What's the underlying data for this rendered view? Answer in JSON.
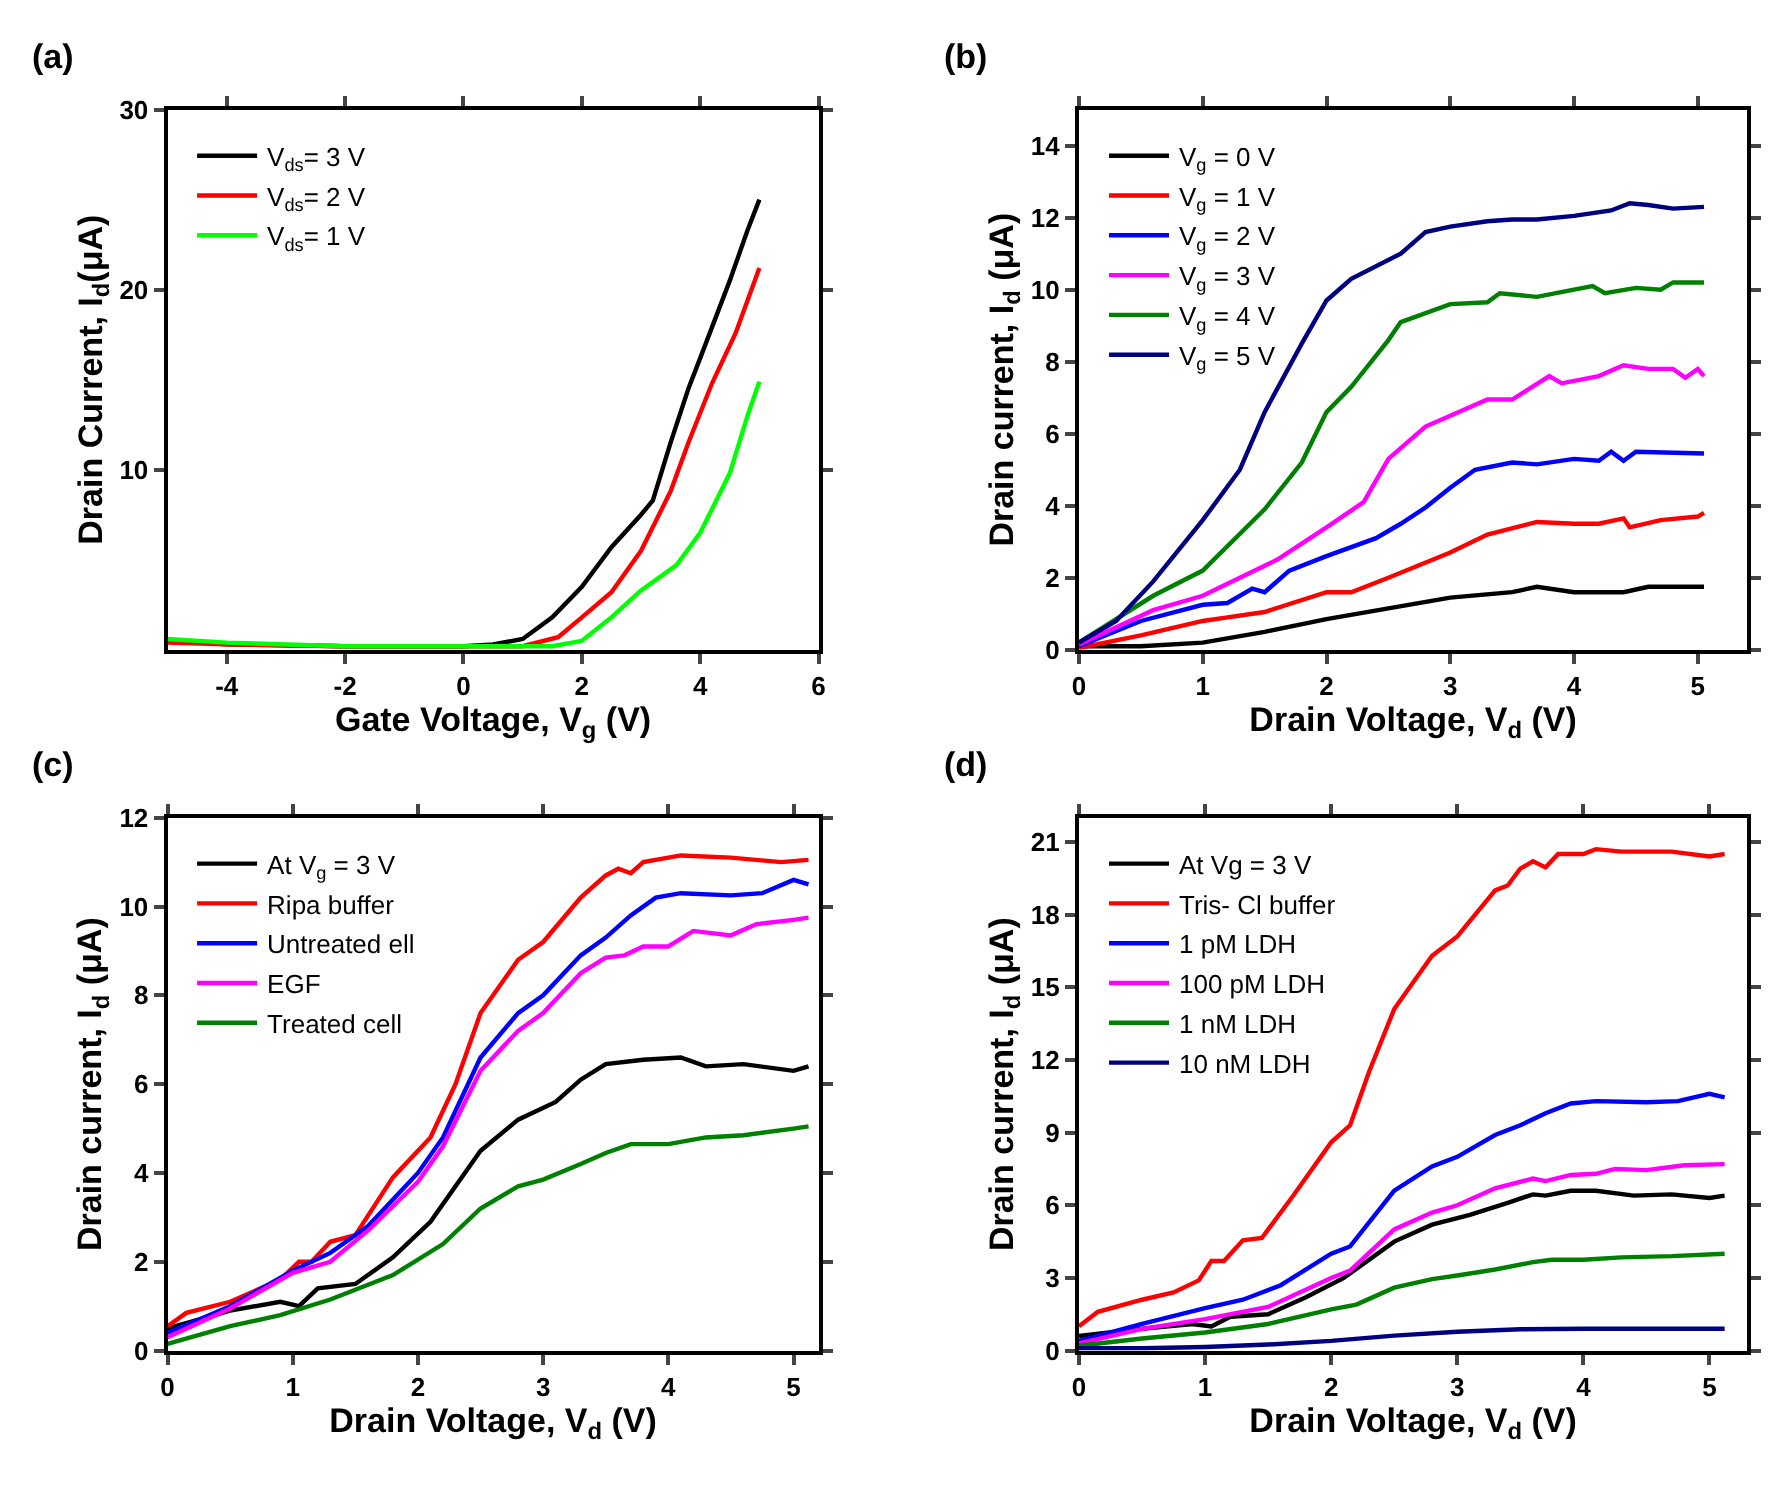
{
  "chart_data": [
    {
      "type": "line",
      "title": "(a)",
      "xlabel": "Gate Voltage, V$_{g}$ (V)",
      "ylabel": "Drain Current, I$_{d}$(μA)",
      "xlim": [
        -5,
        6
      ],
      "xticks": [
        -4,
        -2,
        0,
        2,
        4,
        6
      ],
      "ylim": [
        0,
        30
      ],
      "yticks": [
        10,
        20,
        30
      ],
      "legend": "top left",
      "line_style": "solid",
      "marker": "none",
      "series": [
        {
          "name": "V$_{ds}$= 3 V",
          "color": "#000000",
          "x": [
            -5,
            -4,
            -2,
            0,
            0.5,
            1,
            1.5,
            2,
            2.5,
            3,
            3.2,
            3.5,
            3.8,
            4,
            4.5,
            4.8,
            5
          ],
          "values": [
            0.5,
            0.3,
            0.2,
            0.2,
            0.3,
            0.6,
            1.8,
            3.5,
            5.7,
            7.5,
            8.3,
            11.5,
            14.5,
            16.2,
            20.5,
            23.3,
            25
          ]
        },
        {
          "name": "V$_{ds}$= 2 V",
          "color": "#ff0000",
          "x": [
            -5,
            -4,
            -2,
            0,
            1,
            1.6,
            2,
            2.5,
            3,
            3.5,
            3.8,
            4.2,
            4.6,
            5
          ],
          "values": [
            0.4,
            0.3,
            0.2,
            0.2,
            0.2,
            0.7,
            1.8,
            3.2,
            5.5,
            8.8,
            11.5,
            14.8,
            17.6,
            21.2
          ]
        },
        {
          "name": "V$_{ds}$= 1 V",
          "color": "#00ff00",
          "x": [
            -5,
            -4,
            -2,
            0,
            1.5,
            2,
            2.5,
            3,
            3.6,
            4,
            4.5,
            4.8,
            5
          ],
          "values": [
            0.6,
            0.4,
            0.2,
            0.2,
            0.2,
            0.5,
            1.8,
            3.3,
            4.7,
            6.5,
            9.8,
            13,
            14.9
          ]
        }
      ]
    },
    {
      "type": "line",
      "title": "(b)",
      "xlabel": "Drain Voltage, V$_{d}$ (V)",
      "ylabel": "Drain current, I$_{d}$ (μA)",
      "xlim": [
        0,
        5.4
      ],
      "xticks": [
        0,
        1,
        2,
        3,
        4,
        5
      ],
      "ylim": [
        0,
        15
      ],
      "yticks": [
        0,
        2,
        4,
        6,
        8,
        10,
        12,
        14
      ],
      "legend": "top left",
      "line_style": "solid",
      "marker": "none",
      "series": [
        {
          "name": "V$_{g}$ = 0 V",
          "color": "#000000",
          "x": [
            0,
            0.5,
            1,
            1.5,
            2,
            2.5,
            3,
            3.5,
            3.7,
            4,
            4.4,
            4.6,
            5.05
          ],
          "values": [
            0.1,
            0.1,
            0.2,
            0.5,
            0.85,
            1.15,
            1.45,
            1.6,
            1.75,
            1.6,
            1.6,
            1.75,
            1.75
          ]
        },
        {
          "name": "V$_{g}$ = 1 V",
          "color": "#ff0000",
          "x": [
            0,
            0.5,
            1,
            1.2,
            1.5,
            2,
            2.2,
            2.5,
            3,
            3.3,
            3.7,
            4,
            4.2,
            4.4,
            4.45,
            4.7,
            5,
            5.05
          ],
          "values": [
            0.05,
            0.4,
            0.8,
            0.9,
            1.05,
            1.6,
            1.6,
            2.0,
            2.7,
            3.2,
            3.55,
            3.5,
            3.5,
            3.65,
            3.4,
            3.6,
            3.7,
            3.8
          ]
        },
        {
          "name": "V$_{g}$ = 2 V",
          "color": "#0000ff",
          "x": [
            0,
            0.5,
            1,
            1.2,
            1.4,
            1.5,
            1.7,
            2,
            2.4,
            2.6,
            2.8,
            3,
            3.2,
            3.5,
            3.7,
            4,
            4.2,
            4.3,
            4.4,
            4.5,
            5.05
          ],
          "values": [
            0.1,
            0.8,
            1.25,
            1.3,
            1.7,
            1.6,
            2.2,
            2.6,
            3.1,
            3.5,
            3.95,
            4.5,
            5.0,
            5.2,
            5.15,
            5.3,
            5.25,
            5.5,
            5.25,
            5.5,
            5.45
          ]
        },
        {
          "name": "V$_{g}$ = 3 V",
          "color": "#ff00ff",
          "x": [
            0,
            0.6,
            1,
            1.3,
            1.6,
            2,
            2.3,
            2.5,
            2.8,
            3,
            3.3,
            3.5,
            3.8,
            3.9,
            4.2,
            4.4,
            4.6,
            4.8,
            4.9,
            5,
            5.05
          ],
          "values": [
            0.15,
            1.1,
            1.5,
            2.0,
            2.5,
            3.4,
            4.1,
            5.3,
            6.2,
            6.5,
            6.95,
            6.95,
            7.6,
            7.4,
            7.6,
            7.9,
            7.8,
            7.8,
            7.55,
            7.8,
            7.6
          ]
        },
        {
          "name": "V$_{g}$ = 4 V",
          "color": "#008000",
          "x": [
            0,
            0.6,
            1,
            1.5,
            1.8,
            2,
            2.2,
            2.5,
            2.6,
            3,
            3.3,
            3.4,
            3.7,
            4,
            4.15,
            4.25,
            4.5,
            4.7,
            4.8,
            5.05
          ],
          "values": [
            0.2,
            1.5,
            2.2,
            3.9,
            5.2,
            6.6,
            7.3,
            8.6,
            9.1,
            9.6,
            9.65,
            9.9,
            9.8,
            10,
            10.1,
            9.9,
            10.05,
            10.0,
            10.2,
            10.2
          ]
        },
        {
          "name": "V$_{g}$ = 5 V",
          "color": "#000080",
          "x": [
            0,
            0.3,
            0.6,
            1,
            1.3,
            1.5,
            1.8,
            2,
            2.2,
            2.6,
            2.8,
            3,
            3.3,
            3.5,
            3.7,
            4,
            4.3,
            4.45,
            4.6,
            4.8,
            5.05
          ],
          "values": [
            0.2,
            0.8,
            1.9,
            3.6,
            5.0,
            6.6,
            8.5,
            9.7,
            10.3,
            11.0,
            11.6,
            11.75,
            11.9,
            11.95,
            11.95,
            12.05,
            12.2,
            12.4,
            12.35,
            12.25,
            12.3
          ]
        }
      ]
    },
    {
      "type": "line",
      "title": "(c)",
      "xlabel": "Drain Voltage, V$_{d}$ (V)",
      "ylabel": "Drain current, I$_{d}$ (μA)",
      "xlim": [
        0,
        5.2
      ],
      "xticks": [
        0,
        1,
        2,
        3,
        4,
        5
      ],
      "ylim": [
        0,
        12
      ],
      "yticks": [
        0,
        2,
        4,
        6,
        8,
        10,
        12
      ],
      "legend": "top left",
      "line_style": "solid",
      "marker": "none",
      "series": [
        {
          "name": "At V$_{g}$ = 3 V",
          "color": "#000000",
          "x": [
            0,
            0.5,
            0.9,
            1.05,
            1.2,
            1.5,
            1.8,
            2.1,
            2.5,
            2.8,
            3.1,
            3.3,
            3.5,
            3.8,
            4.1,
            4.3,
            4.6,
            5,
            5.12
          ],
          "values": [
            0.5,
            0.9,
            1.1,
            1.0,
            1.4,
            1.5,
            2.1,
            2.9,
            4.5,
            5.2,
            5.6,
            6.1,
            6.45,
            6.55,
            6.6,
            6.4,
            6.45,
            6.3,
            6.4
          ]
        },
        {
          "name": "Ripa buffer",
          "color": "#ff0000",
          "x": [
            0,
            0.15,
            0.5,
            0.9,
            1.05,
            1.15,
            1.3,
            1.5,
            1.8,
            2.1,
            2.3,
            2.5,
            2.8,
            3,
            3.3,
            3.5,
            3.6,
            3.7,
            3.8,
            4.1,
            4.5,
            4.9,
            5.12
          ],
          "values": [
            0.55,
            0.85,
            1.1,
            1.6,
            2.0,
            2.0,
            2.45,
            2.6,
            3.9,
            4.8,
            6.0,
            7.6,
            8.8,
            9.2,
            10.2,
            10.7,
            10.85,
            10.75,
            11,
            11.15,
            11.1,
            11.0,
            11.05
          ]
        },
        {
          "name": "Untreated ell",
          "color": "#0000ff",
          "x": [
            0,
            0.5,
            1,
            1.3,
            1.6,
            2,
            2.2,
            2.5,
            2.8,
            3,
            3.3,
            3.5,
            3.7,
            3.9,
            4.1,
            4.5,
            4.75,
            5,
            5.12
          ],
          "values": [
            0.4,
            1.0,
            1.8,
            2.2,
            2.8,
            4.0,
            4.8,
            6.6,
            7.6,
            8.0,
            8.9,
            9.3,
            9.8,
            10.2,
            10.3,
            10.25,
            10.3,
            10.6,
            10.5
          ]
        },
        {
          "name": "EGF",
          "color": "#ff00ff",
          "x": [
            0,
            0.5,
            1,
            1.3,
            1.6,
            2,
            2.2,
            2.5,
            2.8,
            3,
            3.3,
            3.5,
            3.65,
            3.8,
            4,
            4.2,
            4.5,
            4.7,
            5,
            5.12
          ],
          "values": [
            0.3,
            0.95,
            1.75,
            2.0,
            2.7,
            3.8,
            4.6,
            6.3,
            7.2,
            7.6,
            8.5,
            8.85,
            8.9,
            9.1,
            9.1,
            9.45,
            9.35,
            9.6,
            9.7,
            9.75
          ]
        },
        {
          "name": "Treated cell",
          "color": "#008000",
          "x": [
            0,
            0.5,
            0.9,
            1.3,
            1.8,
            2.2,
            2.5,
            2.8,
            3,
            3.3,
            3.5,
            3.7,
            4,
            4.3,
            4.6,
            5,
            5.12
          ],
          "values": [
            0.15,
            0.55,
            0.8,
            1.15,
            1.7,
            2.4,
            3.2,
            3.7,
            3.85,
            4.2,
            4.45,
            4.65,
            4.65,
            4.8,
            4.85,
            5.0,
            5.05
          ]
        }
      ]
    },
    {
      "type": "line",
      "title": "(d)",
      "xlabel": "Drain Voltage, V$_{d}$ (V)",
      "ylabel": "Drain current, I$_{d}$ (μA)",
      "xlim": [
        0,
        5.3
      ],
      "xticks": [
        0,
        1,
        2,
        3,
        4,
        5
      ],
      "ylim": [
        0,
        22
      ],
      "yticks": [
        0,
        3,
        6,
        9,
        12,
        15,
        18,
        21
      ],
      "legend": "top left",
      "line_style": "solid",
      "marker": "none",
      "series": [
        {
          "name": "At Vg = 3 V",
          "color": "#000000",
          "x": [
            0,
            0.5,
            0.9,
            1.05,
            1.2,
            1.5,
            1.8,
            2.1,
            2.5,
            2.8,
            3.1,
            3.4,
            3.6,
            3.7,
            3.9,
            4.1,
            4.4,
            4.7,
            5,
            5.12
          ],
          "values": [
            0.6,
            0.9,
            1.1,
            1.0,
            1.4,
            1.5,
            2.2,
            3.0,
            4.5,
            5.2,
            5.6,
            6.1,
            6.45,
            6.4,
            6.6,
            6.6,
            6.4,
            6.45,
            6.3,
            6.4
          ]
        },
        {
          "name": "Tris- Cl buffer",
          "color": "#ff0000",
          "x": [
            0,
            0.15,
            0.5,
            0.75,
            0.95,
            1.05,
            1.15,
            1.3,
            1.45,
            1.7,
            2,
            2.15,
            2.3,
            2.5,
            2.8,
            3,
            3.3,
            3.4,
            3.5,
            3.6,
            3.7,
            3.8,
            4,
            4.1,
            4.3,
            4.7,
            5,
            5.12
          ],
          "values": [
            1.0,
            1.6,
            2.1,
            2.4,
            2.9,
            3.7,
            3.7,
            4.55,
            4.65,
            6.4,
            8.6,
            9.3,
            11.5,
            14.1,
            16.3,
            17.1,
            19.0,
            19.2,
            19.9,
            20.2,
            19.95,
            20.5,
            20.5,
            20.7,
            20.6,
            20.6,
            20.4,
            20.5
          ]
        },
        {
          "name": "1 pM LDH",
          "color": "#0000ff",
          "x": [
            0,
            0.5,
            1,
            1.3,
            1.6,
            2,
            2.15,
            2.5,
            2.8,
            3,
            3.3,
            3.5,
            3.7,
            3.9,
            4.1,
            4.5,
            4.75,
            5,
            5.12
          ],
          "values": [
            0.4,
            1.1,
            1.75,
            2.1,
            2.7,
            4.0,
            4.3,
            6.6,
            7.6,
            8.0,
            8.9,
            9.3,
            9.8,
            10.2,
            10.3,
            10.25,
            10.3,
            10.6,
            10.45
          ]
        },
        {
          "name": "100 pM LDH",
          "color": "#ff00ff",
          "x": [
            0,
            0.5,
            1,
            1.5,
            2,
            2.15,
            2.5,
            2.8,
            3,
            3.3,
            3.6,
            3.7,
            3.9,
            4.1,
            4.25,
            4.5,
            4.8,
            5.12
          ],
          "values": [
            0.3,
            0.9,
            1.3,
            1.8,
            3.0,
            3.3,
            5.0,
            5.7,
            6.0,
            6.7,
            7.1,
            7.0,
            7.25,
            7.3,
            7.5,
            7.45,
            7.65,
            7.7
          ]
        },
        {
          "name": "1 nM LDH",
          "color": "#008000",
          "x": [
            0,
            0.5,
            1,
            1.5,
            2,
            2.2,
            2.5,
            2.8,
            3,
            3.3,
            3.6,
            3.75,
            4,
            4.3,
            4.7,
            5.12
          ],
          "values": [
            0.2,
            0.5,
            0.75,
            1.1,
            1.7,
            1.9,
            2.6,
            2.95,
            3.1,
            3.35,
            3.65,
            3.75,
            3.75,
            3.85,
            3.9,
            4.0
          ]
        },
        {
          "name": "10 nM LDH",
          "color": "#000080",
          "x": [
            0,
            0.5,
            1,
            1.5,
            2,
            2.5,
            3,
            3.5,
            4,
            4.5,
            5.12
          ],
          "values": [
            0.1,
            0.1,
            0.15,
            0.25,
            0.4,
            0.62,
            0.78,
            0.88,
            0.9,
            0.9,
            0.9
          ]
        }
      ]
    }
  ]
}
